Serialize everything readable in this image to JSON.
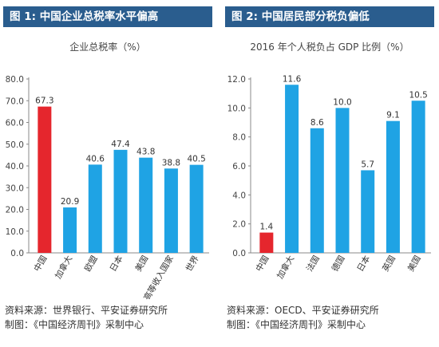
{
  "chart_data": [
    {
      "type": "bar",
      "title": "图 1: 中国企业总税率水平偏高",
      "ylabel": "企业总税率（%）",
      "categories": [
        "中国",
        "加拿大",
        "欧盟",
        "日本",
        "美国",
        "中高等收入国家",
        "世界"
      ],
      "values": [
        67.3,
        20.9,
        40.6,
        47.4,
        43.8,
        38.8,
        40.5
      ],
      "value_labels": [
        "67.3",
        "20.9",
        "40.6",
        "47.4",
        "43.8",
        "38.8",
        "40.5"
      ],
      "ylim": [
        0,
        80
      ],
      "yticks": [
        0,
        10,
        20,
        30,
        40,
        50,
        60,
        70,
        80
      ],
      "ytick_labels": [
        "0.0",
        "10.0",
        "20.0",
        "30.0",
        "40.0",
        "50.0",
        "60.0",
        "70.0",
        "80.0"
      ],
      "highlight_index": 0,
      "colors": {
        "highlight": "#e5262d",
        "bar": "#1fa3e4",
        "title_bg": "#2a5d8e"
      },
      "source": [
        "资料来源：世界银行、平安证券研究所",
        "制图：《中国经济周刊》采制中心"
      ]
    },
    {
      "type": "bar",
      "title": "图 2: 中国居民部分税负偏低",
      "ylabel": "2016 年个人税负占 GDP 比例（%）",
      "categories": [
        "中国",
        "加拿大",
        "法国",
        "德国",
        "日本",
        "英国",
        "美国"
      ],
      "values": [
        1.4,
        11.6,
        8.6,
        10.0,
        5.7,
        9.1,
        10.5
      ],
      "value_labels": [
        "1.4",
        "11.6",
        "8.6",
        "10.0",
        "5.7",
        "9.1",
        "10.5"
      ],
      "ylim": [
        0,
        12
      ],
      "yticks": [
        0,
        2,
        4,
        6,
        8,
        10,
        12
      ],
      "ytick_labels": [
        "0.0",
        "2.0",
        "4.0",
        "6.0",
        "8.0",
        "10.0",
        "12.0"
      ],
      "highlight_index": 0,
      "colors": {
        "highlight": "#e5262d",
        "bar": "#1fa3e4",
        "title_bg": "#2a5d8e"
      },
      "source": [
        "资料来源：OECD、平安证券研究所",
        "制图：《中国经济周刊》采制中心"
      ]
    }
  ]
}
